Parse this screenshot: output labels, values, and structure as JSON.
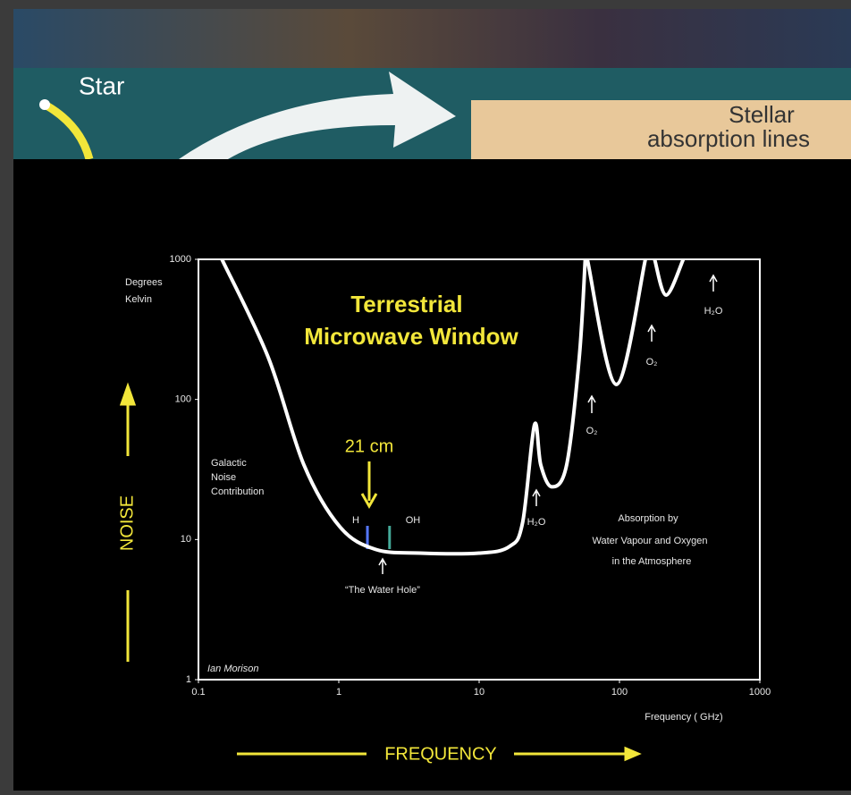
{
  "chart_data": {
    "type": "line",
    "header": {
      "star": "Star",
      "box": [
        "Stellar",
        "absorption lines"
      ]
    },
    "annotations": [
      "Degrees",
      "Kelvin",
      "Terrestrial",
      "Microwave Window",
      "21 cm",
      "Galactic",
      "Noise",
      "Contribution",
      "H",
      "OH",
      "“The Water Hole”",
      "H₂O",
      "O₂",
      "O₂",
      "H₂O",
      "Absorption by",
      "Water Vapour and Oxygen",
      "in the Atmosphere",
      "Ian Morison"
    ],
    "xlabel": "Frequency ( GHz)",
    "ylabel_arrow": "NOISE",
    "xlabel_arrow": "FREQUENCY",
    "xscale": "log",
    "yscale": "log",
    "xlim": [
      0.1,
      1000
    ],
    "xticks": [
      0.1,
      1,
      10,
      100,
      1000
    ],
    "ylim": [
      1,
      1000
    ],
    "yticks": [
      1,
      10,
      100,
      1000
    ],
    "x": [
      0.147,
      0.314,
      0.565,
      1.02,
      1.83,
      3.8,
      10,
      16.4,
      20.4,
      24.8,
      27.5,
      33,
      42,
      51.7,
      57,
      null,
      59,
      95,
      153,
      null,
      178,
      215,
      285
    ],
    "series": [
      {
        "color": "#ffffff",
        "values": [
          1000,
          200,
          34,
          12.3,
          8.5,
          8,
          8,
          8.9,
          13.2,
          66,
          34,
          23.8,
          34,
          200,
          1000,
          null,
          1000,
          128,
          1000,
          null,
          1000,
          556,
          1000
        ]
      }
    ],
    "lines": [
      {
        "label": "H",
        "x": 1.6,
        "color": "#5577ff"
      },
      {
        "label": "OH",
        "x": 2.3,
        "color": "#44aa99"
      }
    ]
  }
}
